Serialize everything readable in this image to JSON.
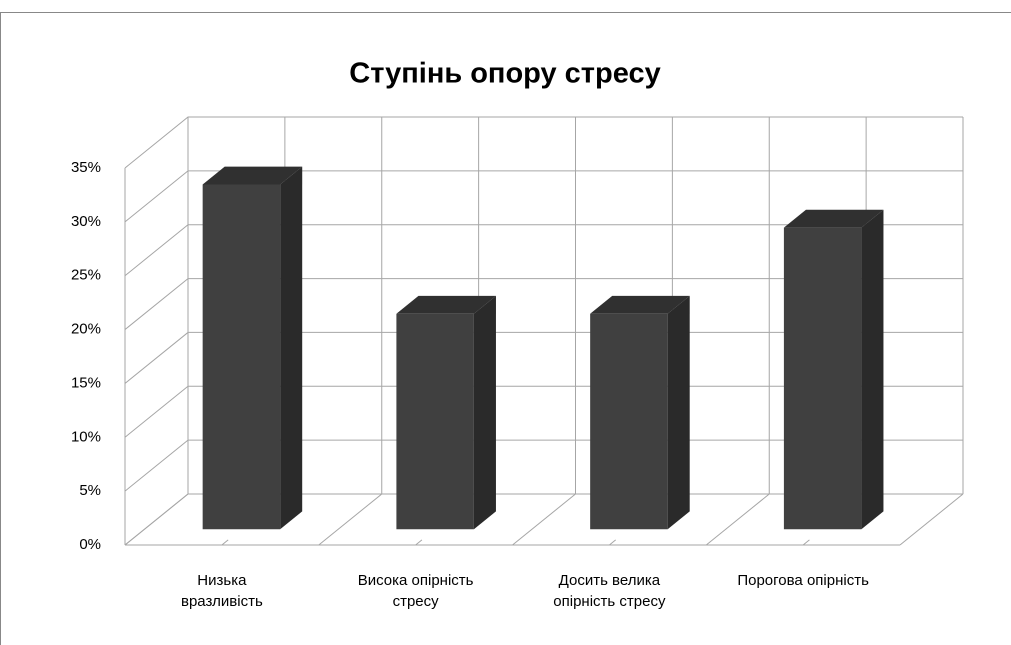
{
  "chart_data": {
    "type": "bar3d",
    "title": "Ступінь опору стресу",
    "categories": [
      "Низька\nвразливість",
      "Висока опірність\nстресу",
      "Досить велика\nопірність стресу",
      "Порогова опірність"
    ],
    "values": [
      32,
      20,
      20,
      28
    ],
    "color": "#404040",
    "ylim": [
      0,
      35
    ],
    "yticks": [
      {
        "value": 0,
        "label": "0%"
      },
      {
        "value": 5,
        "label": "5%"
      },
      {
        "value": 10,
        "label": "10%"
      },
      {
        "value": 15,
        "label": "15%"
      },
      {
        "value": 20,
        "label": "20%"
      },
      {
        "value": 25,
        "label": "25%"
      },
      {
        "value": 30,
        "label": "30%"
      },
      {
        "value": 35,
        "label": "35%"
      }
    ],
    "grid": true
  }
}
